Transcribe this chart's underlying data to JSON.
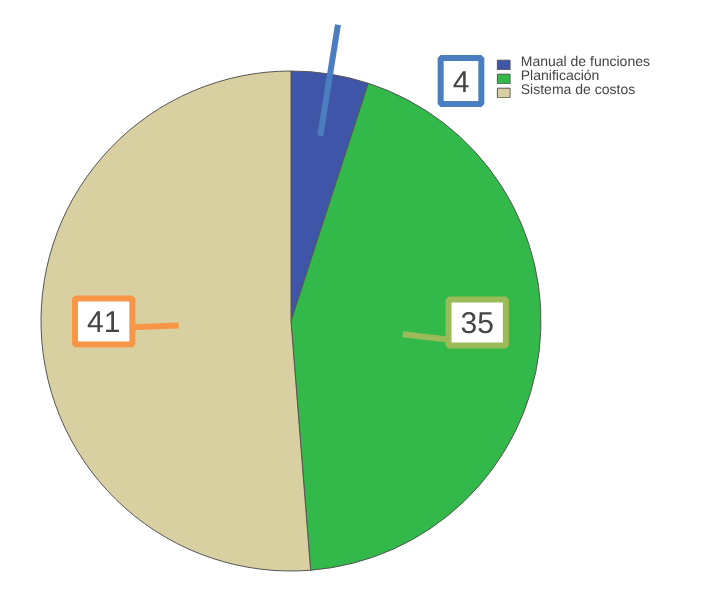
{
  "chart_data": {
    "type": "pie",
    "categories": [
      "Manual de funciones",
      "Planificación",
      "Sistema de costos"
    ],
    "values": [
      4,
      35,
      41
    ],
    "colors": [
      "#3f56a8",
      "#33b84a",
      "#d8d0a0"
    ],
    "data_labels": true,
    "legend": "top right"
  }
}
